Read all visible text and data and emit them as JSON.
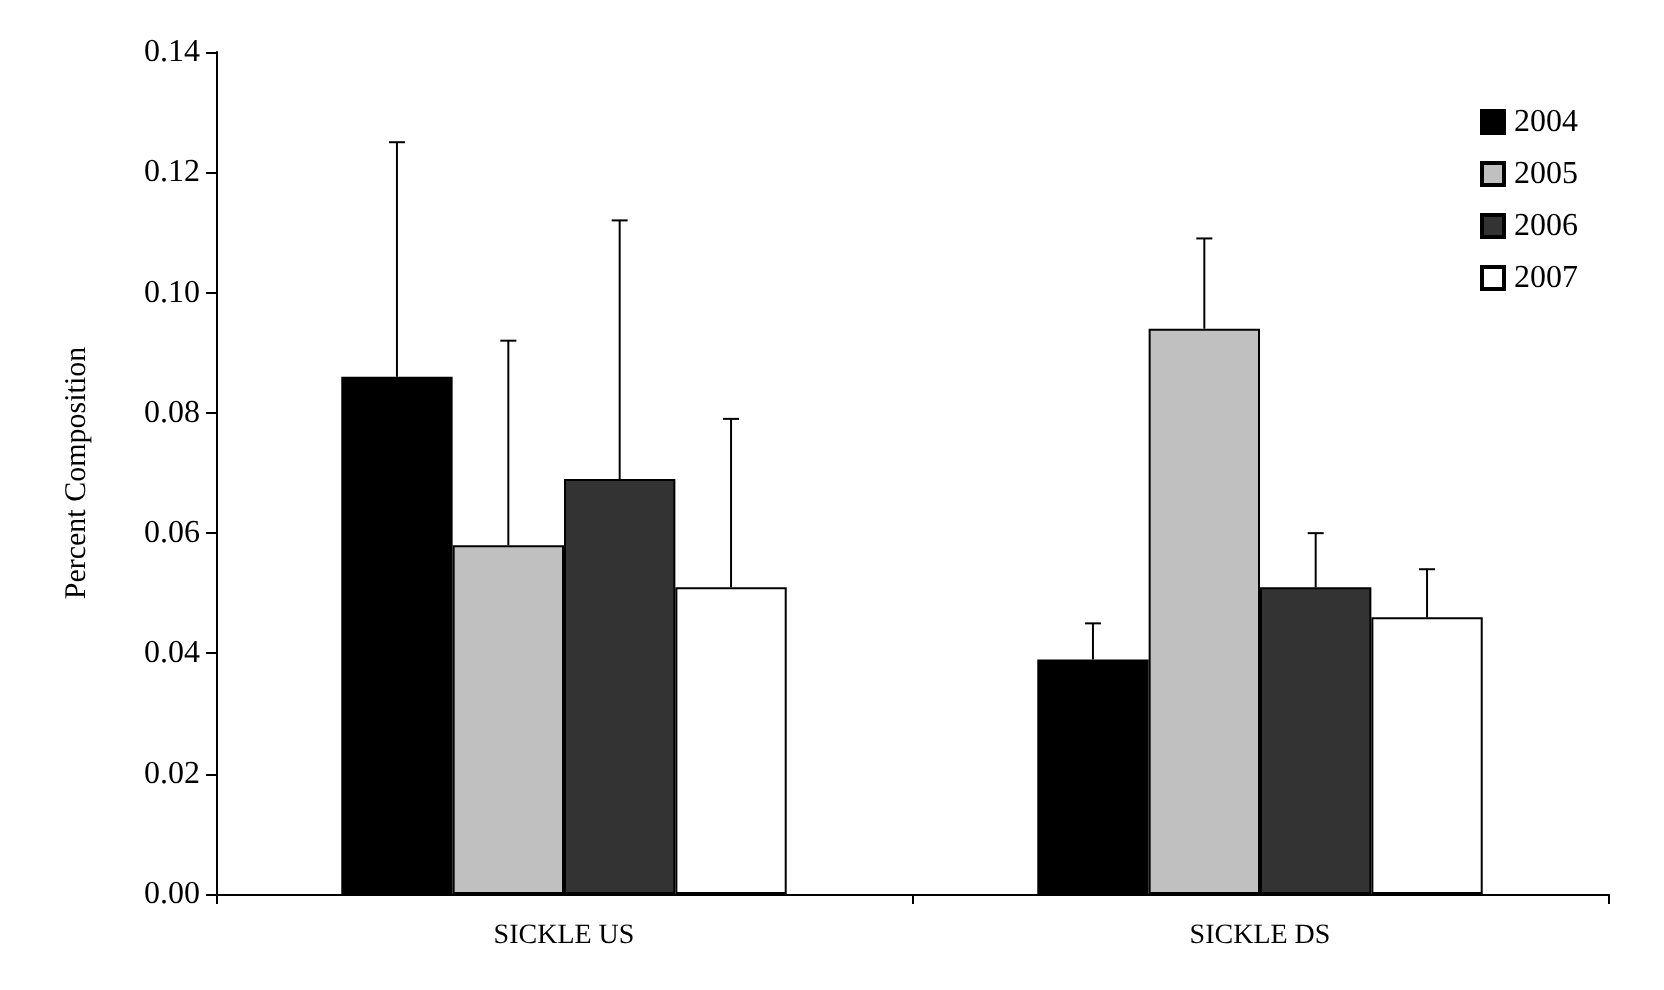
{
  "chart_data": {
    "type": "bar",
    "ylabel": "Percent Composition",
    "categories": [
      "SICKLE US",
      "SICKLE DS"
    ],
    "series": [
      {
        "name": "2004",
        "color": "#000000",
        "values": [
          0.086,
          0.039
        ],
        "errors": [
          [
            0.086,
            0.125
          ],
          [
            0.039,
            0.045
          ]
        ]
      },
      {
        "name": "2005",
        "color": "#c0c0c0",
        "values": [
          0.058,
          0.094
        ],
        "errors": [
          [
            0.058,
            0.092
          ],
          [
            0.094,
            0.109
          ]
        ]
      },
      {
        "name": "2006",
        "color": "#333333",
        "values": [
          0.069,
          0.051
        ],
        "errors": [
          [
            0.069,
            0.112
          ],
          [
            0.051,
            0.06
          ]
        ]
      },
      {
        "name": "2007",
        "color": "#ffffff",
        "values": [
          0.051,
          0.046
        ],
        "errors": [
          [
            0.051,
            0.079
          ],
          [
            0.046,
            0.054
          ]
        ]
      }
    ],
    "ylim": [
      0,
      0.14
    ],
    "yticks": [
      {
        "value": 0,
        "label": "0.00"
      },
      0.02,
      0.04,
      0.06,
      0.08,
      {
        "value": 0.1,
        "label": "0.10"
      },
      0.12,
      0.14
    ],
    "grid": false,
    "legend": "top right"
  }
}
